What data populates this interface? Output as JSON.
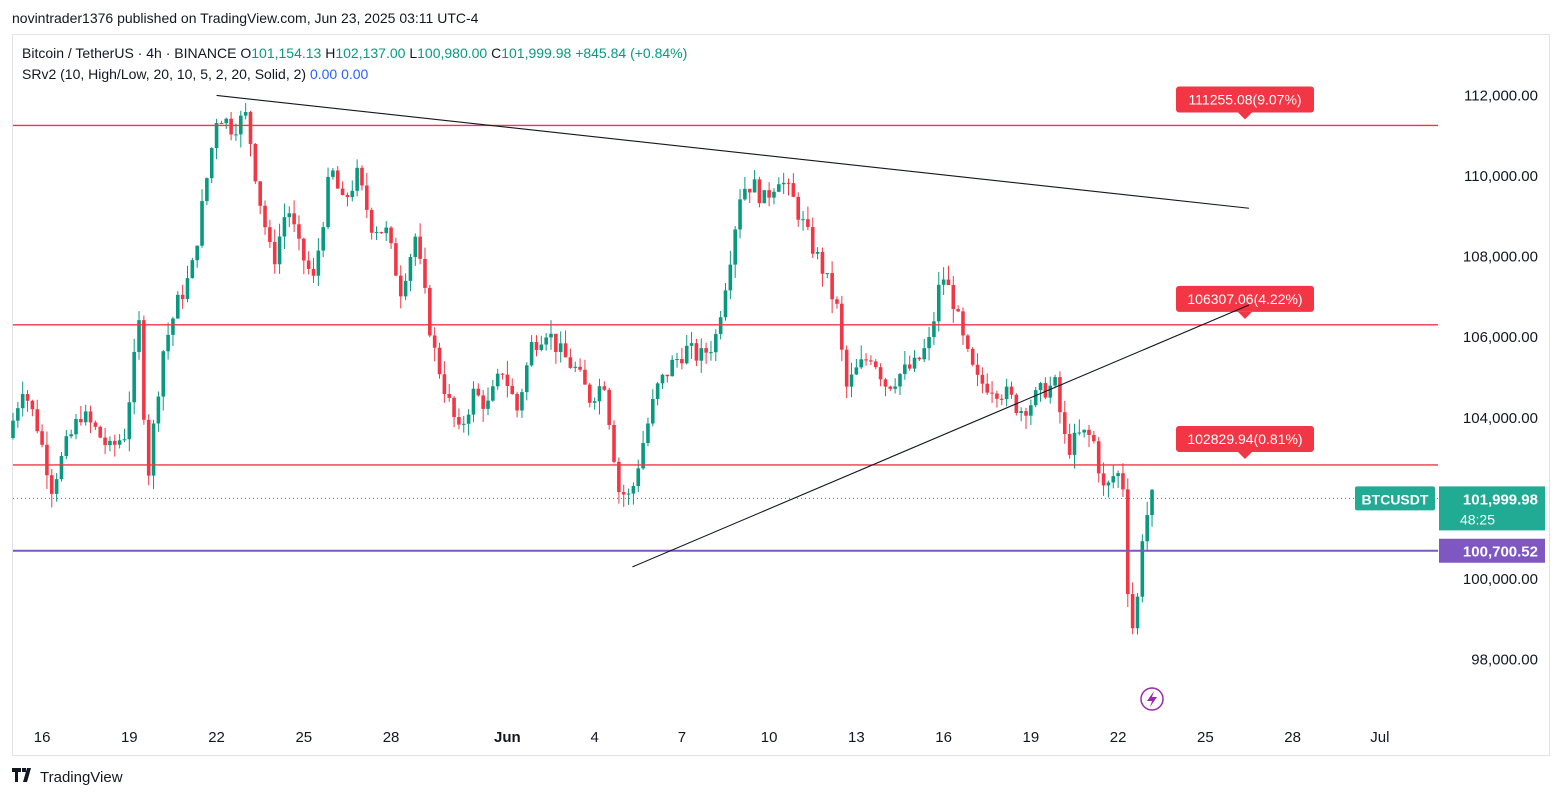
{
  "publish_line": "novintrader1376 published on TradingView.com, Jun 23, 2025 03:11 UTC-4",
  "legend": {
    "symbol": "Bitcoin / TetherUS · 4h · BINANCE",
    "o_label": "O",
    "o": "101,154.13",
    "h_label": "H",
    "h": "102,137.00",
    "l_label": "L",
    "l": "100,980.00",
    "c_label": "C",
    "c": "101,999.98",
    "change": "+845.84 (+0.84%)",
    "indicator": "SRv2 (10, High/Low, 20, 10, 5, 2, 20, Solid, 2)",
    "ind_v1": "0.00",
    "ind_v2": "0.00"
  },
  "footer_brand": "TradingView",
  "colors": {
    "up": "#089981",
    "down": "#f23645",
    "sr_line": "#f23645",
    "support": "#7e57c2",
    "price_tag": "#26a69a",
    "grid": "#f0f3fa"
  },
  "chart_data": {
    "type": "candlestick",
    "symbol": "BTCUSDT",
    "interval": "4h",
    "y_ticks": [
      "112,000.00",
      "110,000.00",
      "108,000.00",
      "106,000.00",
      "104,000.00",
      "100,000.00",
      "98,000.00"
    ],
    "y_tick_values": [
      112000,
      110000,
      108000,
      106000,
      104000,
      100000,
      98000
    ],
    "ylim": [
      96500,
      113500
    ],
    "x_ticks": [
      "16",
      "19",
      "22",
      "25",
      "28",
      "Jun",
      "4",
      "7",
      "10",
      "13",
      "16",
      "19",
      "22",
      "25",
      "28",
      "Jul"
    ],
    "x_tick_days": [
      15,
      18,
      21,
      24,
      27,
      31,
      34,
      37,
      40,
      43,
      46,
      49,
      52,
      55,
      58,
      61
    ],
    "xlim_days": [
      14.0,
      63.0
    ],
    "horizontal_levels": [
      {
        "value": 111255.08,
        "label": "111255.08(9.07%)"
      },
      {
        "value": 106307.06,
        "label": "106307.06(4.22%)"
      },
      {
        "value": 102829.94,
        "label": "102829.94(0.81%)"
      }
    ],
    "support_level": {
      "value": 100700.52,
      "label": "100,700.52"
    },
    "last_price": {
      "value": 101999.98,
      "label": "101,999.98",
      "ticker": "BTCUSDT",
      "countdown": "48:25"
    },
    "trendlines": [
      {
        "from": {
          "day": 21.0,
          "price": 112000
        },
        "to": {
          "day": 56.5,
          "price": 109200
        }
      },
      {
        "from": {
          "day": 35.3,
          "price": 100300
        },
        "to": {
          "day": 56.5,
          "price": 106800
        }
      }
    ],
    "anchors": [
      {
        "d": 14.0,
        "p": 103500
      },
      {
        "d": 14.5,
        "p": 104800
      },
      {
        "d": 15.0,
        "p": 103800
      },
      {
        "d": 15.5,
        "p": 102300
      },
      {
        "d": 16.0,
        "p": 103300
      },
      {
        "d": 16.5,
        "p": 104100
      },
      {
        "d": 17.0,
        "p": 103700
      },
      {
        "d": 17.5,
        "p": 103200
      },
      {
        "d": 18.0,
        "p": 103600
      },
      {
        "d": 18.5,
        "p": 106300
      },
      {
        "d": 18.8,
        "p": 102500
      },
      {
        "d": 19.3,
        "p": 105600
      },
      {
        "d": 19.8,
        "p": 106800
      },
      {
        "d": 20.3,
        "p": 107600
      },
      {
        "d": 20.8,
        "p": 109800
      },
      {
        "d": 21.2,
        "p": 111600
      },
      {
        "d": 21.7,
        "p": 111200
      },
      {
        "d": 22.2,
        "p": 111500
      },
      {
        "d": 22.6,
        "p": 109600
      },
      {
        "d": 23.1,
        "p": 107800
      },
      {
        "d": 23.6,
        "p": 109300
      },
      {
        "d": 24.0,
        "p": 108200
      },
      {
        "d": 24.5,
        "p": 107400
      },
      {
        "d": 25.1,
        "p": 110200
      },
      {
        "d": 25.5,
        "p": 109300
      },
      {
        "d": 26.0,
        "p": 110000
      },
      {
        "d": 26.5,
        "p": 108800
      },
      {
        "d": 27.0,
        "p": 108600
      },
      {
        "d": 27.5,
        "p": 107200
      },
      {
        "d": 28.0,
        "p": 108500
      },
      {
        "d": 28.6,
        "p": 105800
      },
      {
        "d": 29.1,
        "p": 104500
      },
      {
        "d": 29.5,
        "p": 103600
      },
      {
        "d": 30.0,
        "p": 104600
      },
      {
        "d": 30.5,
        "p": 104300
      },
      {
        "d": 31.0,
        "p": 105200
      },
      {
        "d": 31.5,
        "p": 104200
      },
      {
        "d": 32.0,
        "p": 105800
      },
      {
        "d": 32.5,
        "p": 106200
      },
      {
        "d": 33.0,
        "p": 105600
      },
      {
        "d": 33.5,
        "p": 105200
      },
      {
        "d": 34.0,
        "p": 104500
      },
      {
        "d": 34.5,
        "p": 104900
      },
      {
        "d": 35.0,
        "p": 102200
      },
      {
        "d": 35.4,
        "p": 102000
      },
      {
        "d": 35.8,
        "p": 103300
      },
      {
        "d": 36.3,
        "p": 104700
      },
      {
        "d": 36.8,
        "p": 105300
      },
      {
        "d": 37.3,
        "p": 105700
      },
      {
        "d": 37.8,
        "p": 105500
      },
      {
        "d": 38.3,
        "p": 105900
      },
      {
        "d": 38.8,
        "p": 107900
      },
      {
        "d": 39.2,
        "p": 109700
      },
      {
        "d": 39.6,
        "p": 109800
      },
      {
        "d": 40.0,
        "p": 109400
      },
      {
        "d": 40.5,
        "p": 110000
      },
      {
        "d": 41.0,
        "p": 109400
      },
      {
        "d": 41.5,
        "p": 108500
      },
      {
        "d": 42.0,
        "p": 107700
      },
      {
        "d": 42.5,
        "p": 106700
      },
      {
        "d": 42.8,
        "p": 104700
      },
      {
        "d": 43.2,
        "p": 105200
      },
      {
        "d": 43.7,
        "p": 105600
      },
      {
        "d": 44.2,
        "p": 104800
      },
      {
        "d": 44.7,
        "p": 105100
      },
      {
        "d": 45.2,
        "p": 105300
      },
      {
        "d": 45.7,
        "p": 105900
      },
      {
        "d": 46.1,
        "p": 107600
      },
      {
        "d": 46.5,
        "p": 106900
      },
      {
        "d": 46.9,
        "p": 105700
      },
      {
        "d": 47.3,
        "p": 104900
      },
      {
        "d": 47.8,
        "p": 104800
      },
      {
        "d": 48.3,
        "p": 104600
      },
      {
        "d": 48.8,
        "p": 104200
      },
      {
        "d": 49.2,
        "p": 104400
      },
      {
        "d": 49.6,
        "p": 104700
      },
      {
        "d": 50.0,
        "p": 104800
      },
      {
        "d": 50.4,
        "p": 103200
      },
      {
        "d": 50.9,
        "p": 103600
      },
      {
        "d": 51.3,
        "p": 103500
      },
      {
        "d": 51.7,
        "p": 102100
      },
      {
        "d": 52.1,
        "p": 102700
      },
      {
        "d": 52.35,
        "p": 102300
      },
      {
        "d": 52.55,
        "p": 99000
      },
      {
        "d": 52.75,
        "p": 98700
      },
      {
        "d": 53.0,
        "p": 101100
      },
      {
        "d": 53.3,
        "p": 102000
      }
    ]
  }
}
